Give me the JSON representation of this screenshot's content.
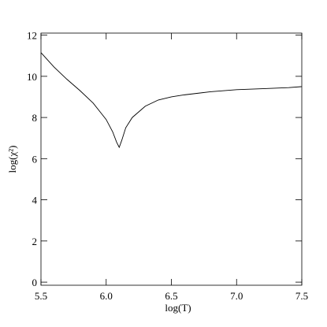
{
  "chart_data": {
    "type": "line",
    "xlabel": "log(T)",
    "ylabel": "log(χ²)",
    "x": [
      5.5,
      5.6,
      5.7,
      5.8,
      5.9,
      6.0,
      6.05,
      6.08,
      6.1,
      6.12,
      6.15,
      6.2,
      6.3,
      6.4,
      6.5,
      6.6,
      6.8,
      7.0,
      7.2,
      7.4,
      7.5
    ],
    "series": [
      {
        "color": "#000000",
        "values": [
          11.15,
          10.45,
          9.85,
          9.3,
          8.7,
          7.9,
          7.3,
          6.8,
          6.55,
          6.9,
          7.5,
          8.0,
          8.55,
          8.85,
          9.0,
          9.1,
          9.25,
          9.35,
          9.4,
          9.45,
          9.5
        ]
      }
    ],
    "xlim": [
      5.5,
      7.5
    ],
    "xticks": [
      5.5,
      {
        "value": 6,
        "label": "6.0"
      },
      6.5,
      {
        "value": 7,
        "label": "7.0"
      },
      7.5
    ],
    "ylim": [
      -0.15,
      12.1
    ],
    "yticks": [
      0,
      2,
      4,
      6,
      8,
      10,
      12
    ]
  }
}
